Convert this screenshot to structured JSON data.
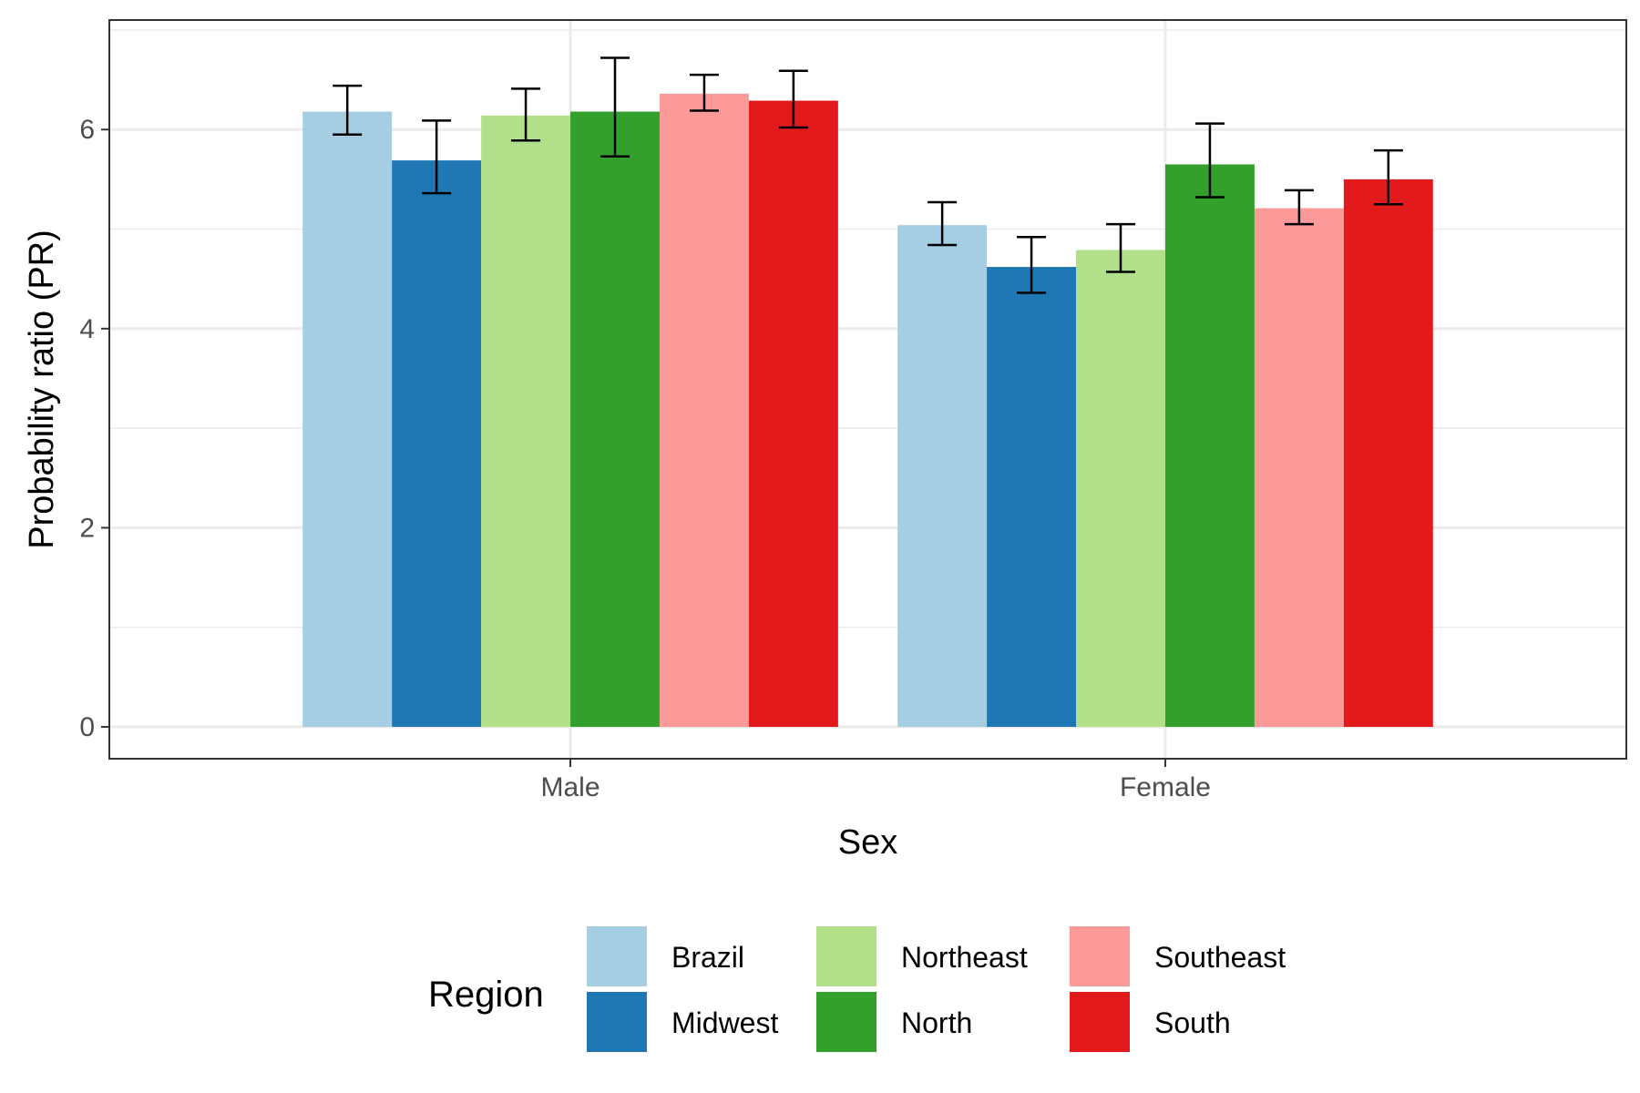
{
  "chart_data": {
    "type": "bar",
    "categories": [
      "Male",
      "Female"
    ],
    "xlabel": "Sex",
    "ylabel": "Probability ratio (PR)",
    "ylim": [
      -0.32,
      7.1
    ],
    "yticks": [
      0,
      2,
      4,
      6
    ],
    "grid": true,
    "legend": {
      "title": "Region",
      "position": "bottom"
    },
    "series": [
      {
        "name": "Brazil",
        "color": "#A6CEE3",
        "values": [
          6.18,
          5.04
        ],
        "ci_low": [
          5.95,
          4.84
        ],
        "ci_high": [
          6.44,
          5.27
        ]
      },
      {
        "name": "Midwest",
        "color": "#1F78B4",
        "values": [
          5.69,
          4.62
        ],
        "ci_low": [
          5.36,
          4.36
        ],
        "ci_high": [
          6.09,
          4.92
        ]
      },
      {
        "name": "Northeast",
        "color": "#B2DF8A",
        "values": [
          6.14,
          4.79
        ],
        "ci_low": [
          5.89,
          4.57
        ],
        "ci_high": [
          6.41,
          5.05
        ]
      },
      {
        "name": "North",
        "color": "#33A02C",
        "values": [
          6.18,
          5.65
        ],
        "ci_low": [
          5.73,
          5.32
        ],
        "ci_high": [
          6.72,
          6.06
        ]
      },
      {
        "name": "Southeast",
        "color": "#FB9A99",
        "values": [
          6.36,
          5.21
        ],
        "ci_low": [
          6.19,
          5.05
        ],
        "ci_high": [
          6.55,
          5.39
        ]
      },
      {
        "name": "South",
        "color": "#E31A1C",
        "values": [
          6.29,
          5.5
        ],
        "ci_low": [
          6.02,
          5.25
        ],
        "ci_high": [
          6.59,
          5.79
        ]
      }
    ]
  }
}
